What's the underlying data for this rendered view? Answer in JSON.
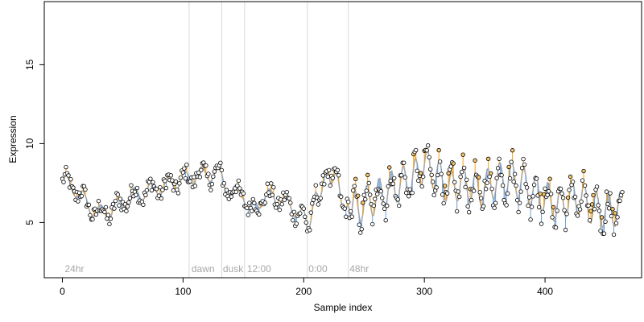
{
  "chart_data": {
    "type": "scatter",
    "title": "",
    "xlabel": "Sample index",
    "ylabel": "Expression",
    "xlim": [
      -15,
      480
    ],
    "ylim": [
      1.5,
      19
    ],
    "x_ticks": [
      "0",
      "100",
      "200",
      "300",
      "400"
    ],
    "x_tick_values": [
      0,
      100,
      200,
      300,
      400
    ],
    "y_ticks": [
      "5",
      "10",
      "15"
    ],
    "y_tick_values": [
      5,
      10,
      15
    ],
    "grid": false,
    "point_count": 465,
    "segments": [
      {
        "label": "24hr",
        "label_x": 2,
        "boundary_x": null
      },
      {
        "label": "dawn",
        "label_x": 107,
        "boundary_x": 105
      },
      {
        "label": "dusk",
        "label_x": 133,
        "boundary_x": 132
      },
      {
        "label": "12:00",
        "label_x": 153,
        "boundary_x": 151
      },
      {
        "label": "0:00",
        "label_x": 204,
        "boundary_x": 203
      },
      {
        "label": "48hr",
        "label_x": 238,
        "boundary_x": 237
      }
    ],
    "series_colors": {
      "point_fill_low": "#ffffff",
      "point_fill_high": "#f5c66a",
      "point_stroke": "#000000",
      "trend_line": "#a8a8a8",
      "drop_line_above": "#f0a020",
      "drop_line_below": "#6a9fd8",
      "boundary_line": "#d8d8d8",
      "segment_label": "#a8a8a8"
    },
    "trend_knots": [
      [
        0,
        7.6
      ],
      [
        10,
        7.2
      ],
      [
        18,
        6.4
      ],
      [
        28,
        5.6
      ],
      [
        40,
        5.7
      ],
      [
        55,
        6.6
      ],
      [
        70,
        7.0
      ],
      [
        85,
        7.3
      ],
      [
        100,
        7.7
      ],
      [
        110,
        8.0
      ],
      [
        125,
        8.1
      ],
      [
        132,
        7.9
      ],
      [
        140,
        6.8
      ],
      [
        150,
        7.0
      ],
      [
        155,
        5.6
      ],
      [
        165,
        6.5
      ],
      [
        175,
        6.7
      ],
      [
        190,
        6.0
      ],
      [
        200,
        5.3
      ],
      [
        203,
        4.7
      ],
      [
        210,
        6.5
      ],
      [
        220,
        8.1
      ],
      [
        228,
        7.7
      ],
      [
        235,
        5.5
      ],
      [
        245,
        6.0
      ],
      [
        260,
        6.6
      ],
      [
        275,
        7.3
      ],
      [
        290,
        7.7
      ],
      [
        300,
        8.7
      ],
      [
        312,
        7.9
      ],
      [
        322,
        7.1
      ],
      [
        330,
        7.6
      ],
      [
        345,
        7.0
      ],
      [
        358,
        7.6
      ],
      [
        370,
        7.9
      ],
      [
        380,
        7.5
      ],
      [
        392,
        6.9
      ],
      [
        400,
        6.6
      ],
      [
        410,
        6.0
      ],
      [
        420,
        6.6
      ],
      [
        430,
        6.5
      ],
      [
        440,
        5.9
      ],
      [
        450,
        5.7
      ],
      [
        465,
        5.9
      ]
    ],
    "oscillation": [
      {
        "from": 0,
        "to": 200,
        "amplitude": 0.5,
        "period": 14
      },
      {
        "from": 200,
        "to": 240,
        "amplitude": 0.5,
        "period": 9
      },
      {
        "from": 240,
        "to": 465,
        "amplitude": 1.1,
        "period": 10
      }
    ]
  }
}
